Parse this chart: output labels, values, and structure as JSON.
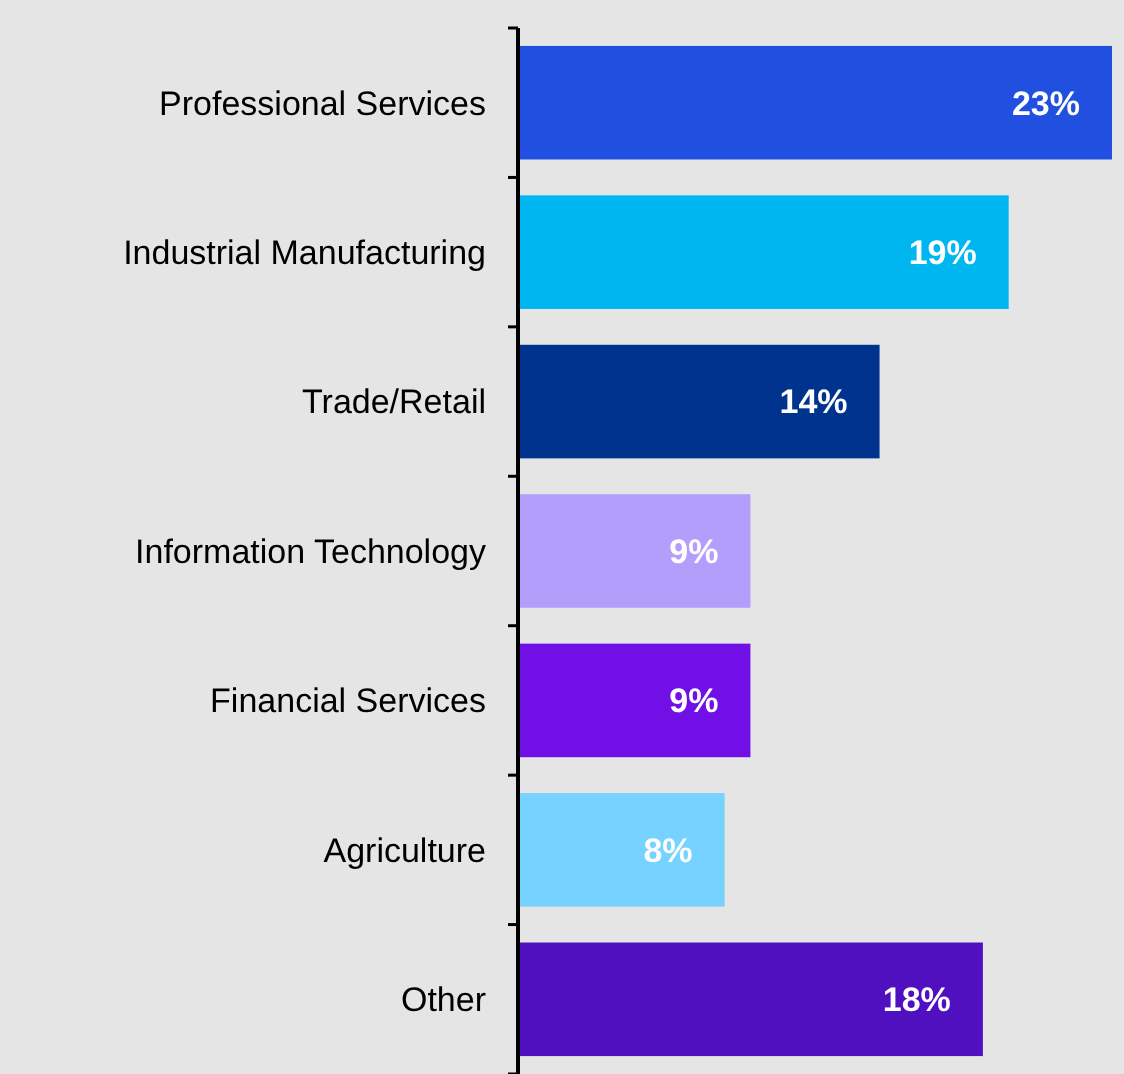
{
  "chart_data": {
    "type": "bar",
    "orientation": "horizontal",
    "categories": [
      "Professional Services",
      "Industrial Manufacturing",
      "Trade/Retail",
      "Information Technology",
      "Financial Services",
      "Agriculture",
      "Other"
    ],
    "values": [
      23,
      19,
      14,
      9,
      9,
      8,
      18
    ],
    "value_labels": [
      "23%",
      "19%",
      "14%",
      "9%",
      "9%",
      "8%",
      "18%"
    ],
    "colors": [
      "#2150e0",
      "#00b6f0",
      "#00338d",
      "#b49efc",
      "#7010e6",
      "#76d2ff",
      "#5010c0"
    ]
  }
}
